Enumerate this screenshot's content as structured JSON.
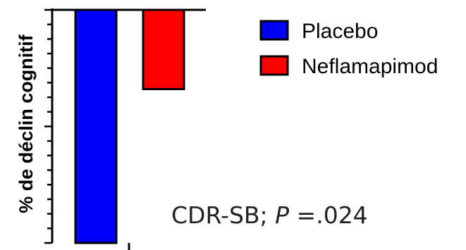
{
  "chart_data": {
    "type": "bar",
    "ylabel": "% de déclin cognitif",
    "ylim": [
      0,
      100
    ],
    "y_reversed": true,
    "grid": false,
    "legend_position": "top-right",
    "series": [
      {
        "name": "Placebo",
        "value": 100,
        "color": "#0000ff"
      },
      {
        "name": "Neflamapimod",
        "value": 34,
        "color": "#ff0000"
      }
    ],
    "annotation": {
      "prefix": "CDR-SB; ",
      "p_symbol": "P",
      "suffix": " =.024"
    }
  }
}
